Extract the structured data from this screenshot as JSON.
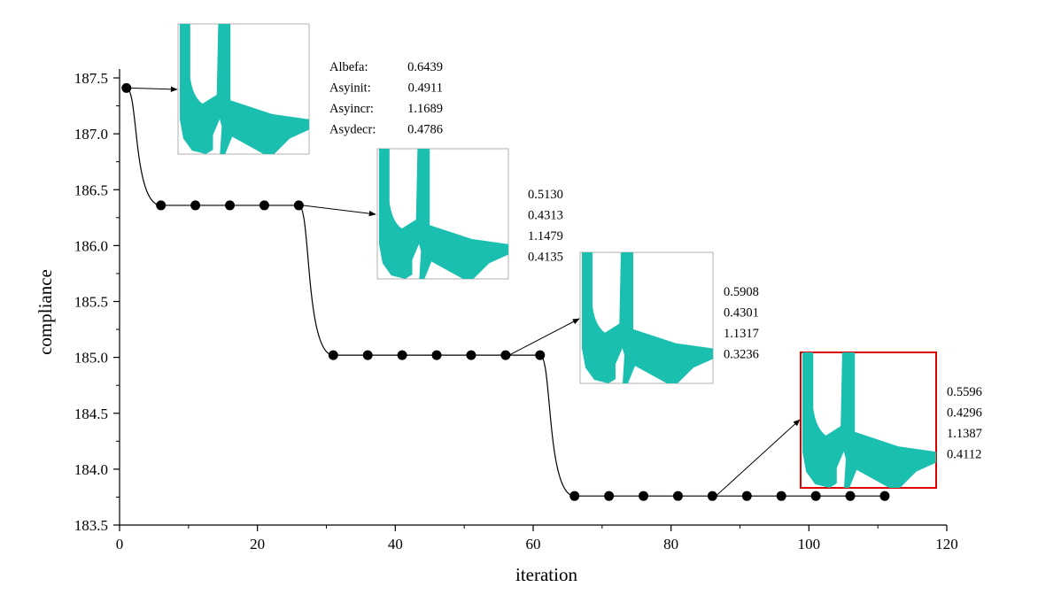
{
  "chart_data": {
    "type": "line",
    "xlabel": "iteration",
    "ylabel": "compliance",
    "xlim": [
      0,
      120
    ],
    "ylim": [
      183.5,
      187.5
    ],
    "xticks": [
      "0",
      "20",
      "40",
      "60",
      "80",
      "100",
      "120"
    ],
    "yticks": [
      "183.5",
      "184.0",
      "184.5",
      "185.0",
      "185.5",
      "186.0",
      "186.5",
      "187.0",
      "187.5"
    ],
    "grid": false,
    "line_color": "#000000",
    "marker_color": "#000000",
    "topology_color": "#1bbfb0",
    "highlight_color": "#e00000",
    "series": [
      {
        "x": [
          1,
          6,
          11,
          16,
          21,
          26,
          31,
          36,
          41,
          46,
          51,
          56,
          61,
          66,
          71,
          76,
          81,
          86,
          91,
          96,
          101,
          106,
          111
        ],
        "y": [
          187.41,
          186.36,
          186.36,
          186.36,
          186.36,
          186.36,
          185.02,
          185.02,
          185.02,
          185.02,
          185.02,
          185.02,
          185.02,
          183.76,
          183.76,
          183.76,
          183.76,
          183.76,
          183.76,
          183.76,
          183.76,
          183.76,
          183.76
        ]
      }
    ],
    "annotations": [
      {
        "labels": [
          "Albefa:",
          "Asyinit:",
          "Asyincr:",
          "Asydecr:"
        ],
        "values": [
          "0.6439",
          "0.4911",
          "1.1689",
          "0.4786"
        ],
        "from_point": 0,
        "highlighted": false
      },
      {
        "labels": [],
        "values": [
          "0.5130",
          "0.4313",
          "1.1479",
          "0.4135"
        ],
        "from_point": 5,
        "highlighted": false
      },
      {
        "labels": [],
        "values": [
          "0.5908",
          "0.4301",
          "1.1317",
          "0.3236"
        ],
        "from_point": 11,
        "highlighted": false
      },
      {
        "labels": [],
        "values": [
          "0.5596",
          "0.4296",
          "1.1387",
          "0.4112"
        ],
        "from_point": 17,
        "highlighted": true
      }
    ]
  }
}
